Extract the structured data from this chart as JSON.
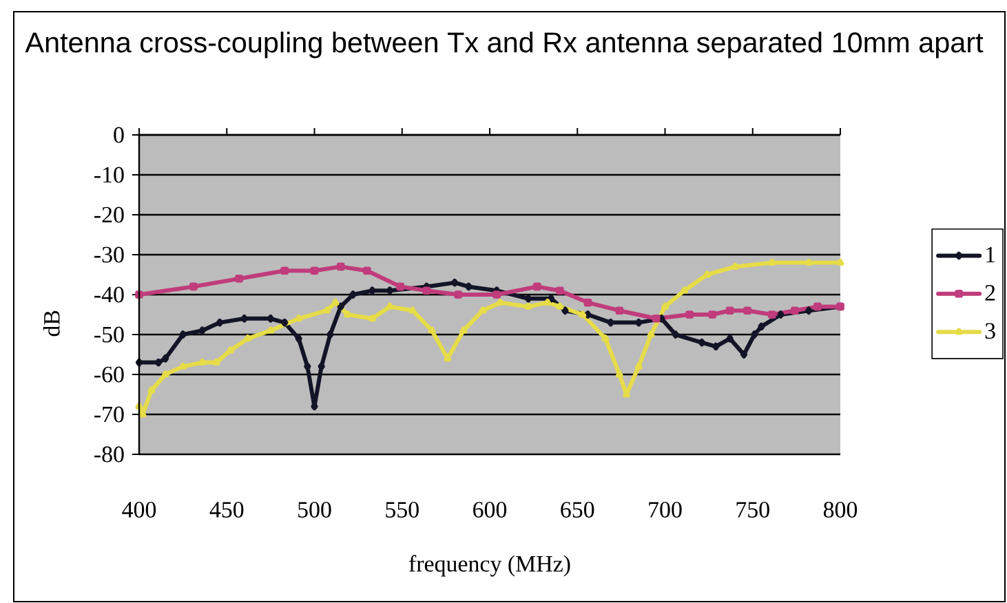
{
  "chart_data": {
    "type": "line",
    "title": "Antenna cross-coupling between Tx and Rx antenna separated 10mm apart",
    "xlabel": "frequency (MHz)",
    "ylabel": "dB",
    "xlim": [
      400,
      800
    ],
    "ylim": [
      -80,
      0
    ],
    "xticks": [
      400,
      450,
      500,
      550,
      600,
      650,
      700,
      750,
      800
    ],
    "yticks": [
      0,
      -10,
      -20,
      -30,
      -40,
      -50,
      -60,
      -70,
      -80
    ],
    "grid": "y",
    "legend": "right",
    "series": [
      {
        "name": "1",
        "color": "#141428",
        "marker": "diamond",
        "x": [
          400,
          411,
          415,
          425,
          436,
          446,
          460,
          475,
          483,
          491,
          496,
          500,
          504,
          509,
          515,
          522,
          533,
          543,
          564,
          580,
          588,
          604,
          622,
          635,
          643,
          656,
          669,
          685,
          698,
          706,
          721,
          729,
          737,
          745,
          751,
          755,
          766,
          782,
          800
        ],
        "values": [
          -57,
          -57,
          -56,
          -50,
          -49,
          -47,
          -46,
          -46,
          -47,
          -51,
          -58,
          -68,
          -58,
          -50,
          -43,
          -40,
          -39,
          -39,
          -38,
          -37,
          -38,
          -39,
          -41,
          -41,
          -44,
          -45,
          -47,
          -47,
          -46,
          -50,
          -52,
          -53,
          -51,
          -55,
          -50,
          -48,
          -45,
          -44,
          -43
        ]
      },
      {
        "name": "2",
        "color": "#c03c7c",
        "marker": "square",
        "x": [
          400,
          431,
          457,
          483,
          500,
          515,
          530,
          549,
          564,
          582,
          604,
          627,
          640,
          656,
          674,
          695,
          714,
          727,
          737,
          747,
          761,
          774,
          787,
          800
        ],
        "values": [
          -40,
          -38,
          -36,
          -34,
          -34,
          -33,
          -34,
          -38,
          -39,
          -40,
          -40,
          -38,
          -39,
          -42,
          -44,
          -46,
          -45,
          -45,
          -44,
          -44,
          -45,
          -44,
          -43,
          -43
        ]
      },
      {
        "name": "3",
        "color": "#e6dc48",
        "marker": "triangle",
        "x": [
          400,
          402,
          407,
          415,
          425,
          436,
          444,
          452,
          462,
          475,
          491,
          507,
          512,
          519,
          533,
          543,
          556,
          567,
          576,
          585,
          596,
          606,
          622,
          633,
          640,
          653,
          666,
          674,
          678,
          685,
          692,
          700,
          711,
          724,
          740,
          761,
          782,
          800
        ],
        "values": [
          -68,
          -70,
          -64,
          -60,
          -58,
          -57,
          -57,
          -54,
          -51,
          -49,
          -46,
          -44,
          -42,
          -45,
          -46,
          -43,
          -44,
          -49,
          -56,
          -49,
          -44,
          -42,
          -43,
          -42,
          -43,
          -45,
          -51,
          -60,
          -65,
          -58,
          -50,
          -43,
          -39,
          -35,
          -33,
          -32,
          -32,
          -32
        ]
      }
    ]
  }
}
